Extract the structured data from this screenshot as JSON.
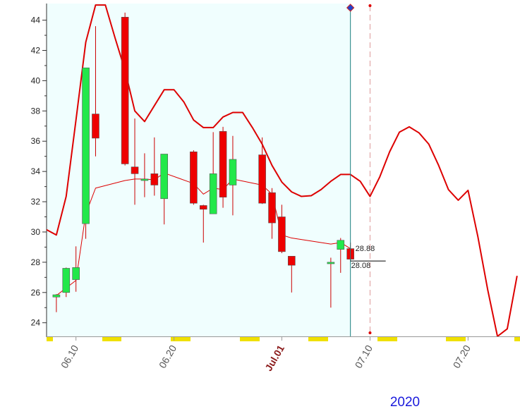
{
  "chart_data": {
    "type": "candlestick",
    "x": [
      8,
      9,
      10,
      11,
      12,
      15,
      16,
      17,
      18,
      19,
      22,
      23,
      24,
      25,
      26,
      29,
      30,
      31,
      32,
      36,
      37,
      38
    ],
    "open": [
      25.7,
      26.0,
      26.85,
      30.55,
      37.8,
      44.2,
      34.3,
      33.4,
      33.85,
      32.2,
      35.3,
      31.75,
      31.2,
      36.65,
      33.1,
      35.1,
      32.6,
      31.0,
      28.4,
      27.9,
      28.85,
      28.9
    ],
    "high": [
      25.9,
      27.65,
      29.05,
      40.85,
      43.6,
      44.5,
      37.5,
      35.2,
      36.25,
      35.15,
      35.4,
      31.8,
      36.6,
      36.95,
      36.35,
      36.25,
      32.9,
      31.8,
      28.4,
      28.3,
      29.6,
      29.3
    ],
    "low": [
      24.7,
      25.7,
      26.05,
      29.55,
      35.0,
      34.4,
      31.8,
      32.3,
      32.4,
      30.5,
      31.8,
      29.3,
      31.2,
      31.6,
      31.1,
      31.85,
      29.55,
      28.6,
      26.0,
      25.0,
      27.3,
      28.1
    ],
    "close": [
      25.85,
      27.6,
      27.65,
      40.85,
      36.2,
      34.5,
      33.85,
      33.5,
      33.1,
      35.15,
      31.9,
      31.5,
      33.85,
      32.3,
      34.8,
      31.9,
      30.6,
      28.7,
      27.8,
      28.0,
      29.45,
      28.2
    ],
    "up_color": "#22e84a",
    "down_color": "#ee0000",
    "lines": [
      {
        "color": "#dd0000",
        "width": 1,
        "x": [
          8,
          9,
          10,
          11,
          12,
          15,
          16,
          17,
          18,
          19,
          22,
          23,
          24,
          25,
          26,
          29,
          30,
          31,
          32,
          36,
          37,
          38
        ],
        "values": [
          25.8,
          26.3,
          26.8,
          31.2,
          32.9,
          33.4,
          33.5,
          33.5,
          33.45,
          33.9,
          33.2,
          32.5,
          32.9,
          32.8,
          33.5,
          33.1,
          32.5,
          29.8,
          29.6,
          29.2,
          29.3,
          28.9
        ]
      },
      {
        "color": "#dd0000",
        "width": 2,
        "x": [
          7,
          8,
          9,
          10,
          11,
          12,
          13,
          14,
          15,
          16,
          17,
          18,
          19,
          20,
          21,
          22,
          23,
          24,
          25,
          26,
          27,
          28,
          29,
          30,
          31,
          32,
          33,
          34,
          35,
          36,
          37,
          38,
          39,
          40,
          41,
          42,
          43,
          44,
          45,
          46,
          47,
          48,
          49,
          50,
          51,
          52,
          53,
          54,
          55
        ],
        "values": [
          30.15,
          29.8,
          32.35,
          37.4,
          42.55,
          45.0,
          45.0,
          42.8,
          40.7,
          38.0,
          37.3,
          38.35,
          39.4,
          39.4,
          38.6,
          37.4,
          36.9,
          36.9,
          37.6,
          37.9,
          37.9,
          36.9,
          35.8,
          34.4,
          33.3,
          32.65,
          32.35,
          32.4,
          32.8,
          33.35,
          33.8,
          33.8,
          33.35,
          32.35,
          33.65,
          35.3,
          36.6,
          36.95,
          36.55,
          35.8,
          34.4,
          32.8,
          32.1,
          32.75,
          29.7,
          26.2,
          23.1,
          23.6,
          27.1
        ]
      }
    ],
    "price_labels": [
      28.88,
      28.08
    ],
    "current_x": 38,
    "projection_x": 40,
    "month_start_tick": 31,
    "xlim": [
      7,
      55.3
    ],
    "xticks": [
      {
        "value": 10,
        "label": "06.10"
      },
      {
        "value": 20,
        "label": "06.20"
      },
      {
        "value": 31,
        "label": "Jul.01"
      },
      {
        "value": 40,
        "label": "07.10"
      },
      {
        "value": 50,
        "label": "07.20"
      }
    ],
    "ylim": [
      23.1,
      45.1
    ],
    "yticks": [
      24,
      26,
      28,
      30,
      32,
      34,
      36,
      38,
      40,
      42,
      44
    ],
    "year_label": "2020"
  }
}
